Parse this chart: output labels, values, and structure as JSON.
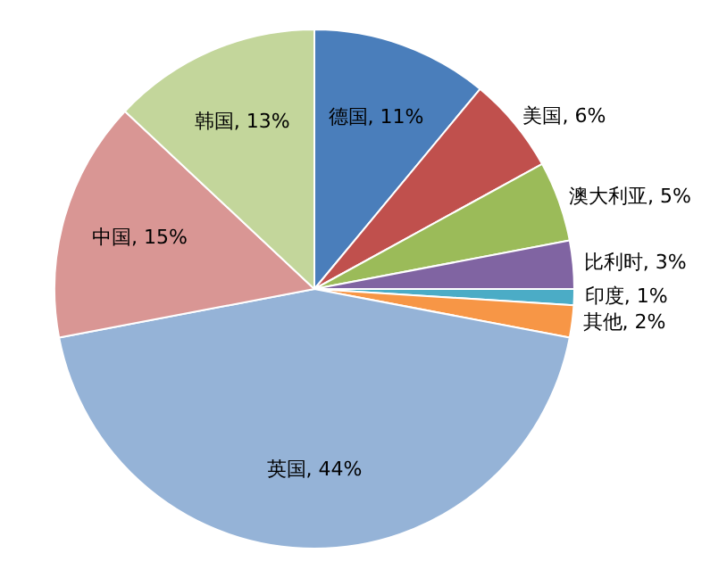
{
  "chart_data": {
    "type": "pie",
    "categories": [
      "德国",
      "美国",
      "澳大利亚",
      "比利时",
      "印度",
      "其他",
      "英国",
      "中国",
      "韩国"
    ],
    "values": [
      11,
      6,
      5,
      3,
      1,
      2,
      44,
      15,
      13
    ],
    "value_labels": [
      "11%",
      "6%",
      "5%",
      "3%",
      "1%",
      "2%",
      "44%",
      "15%",
      "13%"
    ],
    "colors": [
      "#4a7ebb",
      "#c0504d",
      "#9bbb59",
      "#8064a2",
      "#4bacc6",
      "#f79646",
      "#95b3d7",
      "#d99694",
      "#c3d69b"
    ],
    "legend": false
  }
}
